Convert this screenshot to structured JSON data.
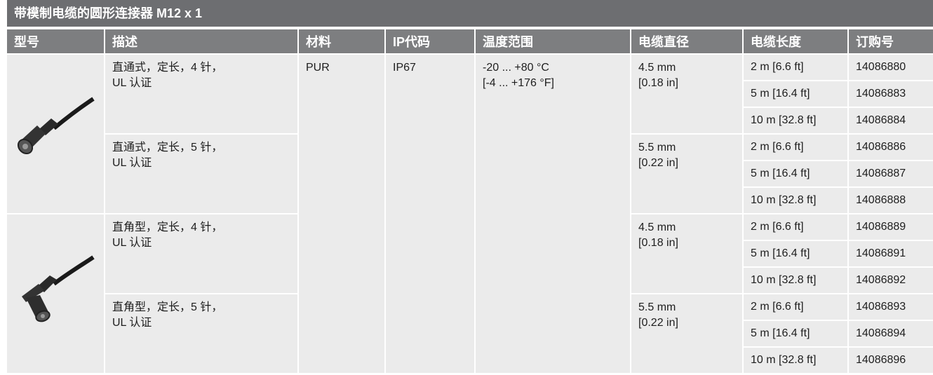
{
  "title": "带模制电缆的圆形连接器 M12 x 1",
  "headers": [
    "型号",
    "描述",
    "材料",
    "IP代码",
    "温度范围",
    "电缆直径",
    "电缆长度",
    "订购号"
  ],
  "material": "PUR",
  "ip_code": "IP67",
  "temperature": [
    "-20 ... +80 °C",
    "[-4 ... +176 °F]"
  ],
  "groups": [
    {
      "description": [
        "直通式，定长，4 针，",
        "UL 认证"
      ],
      "diameter": [
        "4.5 mm",
        "[0.18 in]"
      ],
      "items": [
        {
          "length": "2 m [6.6 ft]",
          "order_no": "14086880"
        },
        {
          "length": "5 m [16.4 ft]",
          "order_no": "14086883"
        },
        {
          "length": "10 m [32.8 ft]",
          "order_no": "14086884"
        }
      ]
    },
    {
      "description": [
        "直通式，定长，5 针，",
        "UL 认证"
      ],
      "diameter": [
        "5.5 mm",
        "[0.22 in]"
      ],
      "items": [
        {
          "length": "2 m [6.6 ft]",
          "order_no": "14086886"
        },
        {
          "length": "5 m [16.4 ft]",
          "order_no": "14086887"
        },
        {
          "length": "10 m [32.8 ft]",
          "order_no": "14086888"
        }
      ]
    },
    {
      "description": [
        "直角型，定长，4 针，",
        "UL 认证"
      ],
      "diameter": [
        "4.5 mm",
        "[0.18 in]"
      ],
      "items": [
        {
          "length": "2 m [6.6 ft]",
          "order_no": "14086889"
        },
        {
          "length": "5 m [16.4 ft]",
          "order_no": "14086891"
        },
        {
          "length": "10 m [32.8 ft]",
          "order_no": "14086892"
        }
      ]
    },
    {
      "description": [
        "直角型，定长，5 针，",
        "UL 认证"
      ],
      "diameter": [
        "5.5 mm",
        "[0.22 in]"
      ],
      "items": [
        {
          "length": "2 m [6.6 ft]",
          "order_no": "14086893"
        },
        {
          "length": "5 m [16.4 ft]",
          "order_no": "14086894"
        },
        {
          "length": "10 m [32.8 ft]",
          "order_no": "14086896"
        }
      ]
    }
  ]
}
